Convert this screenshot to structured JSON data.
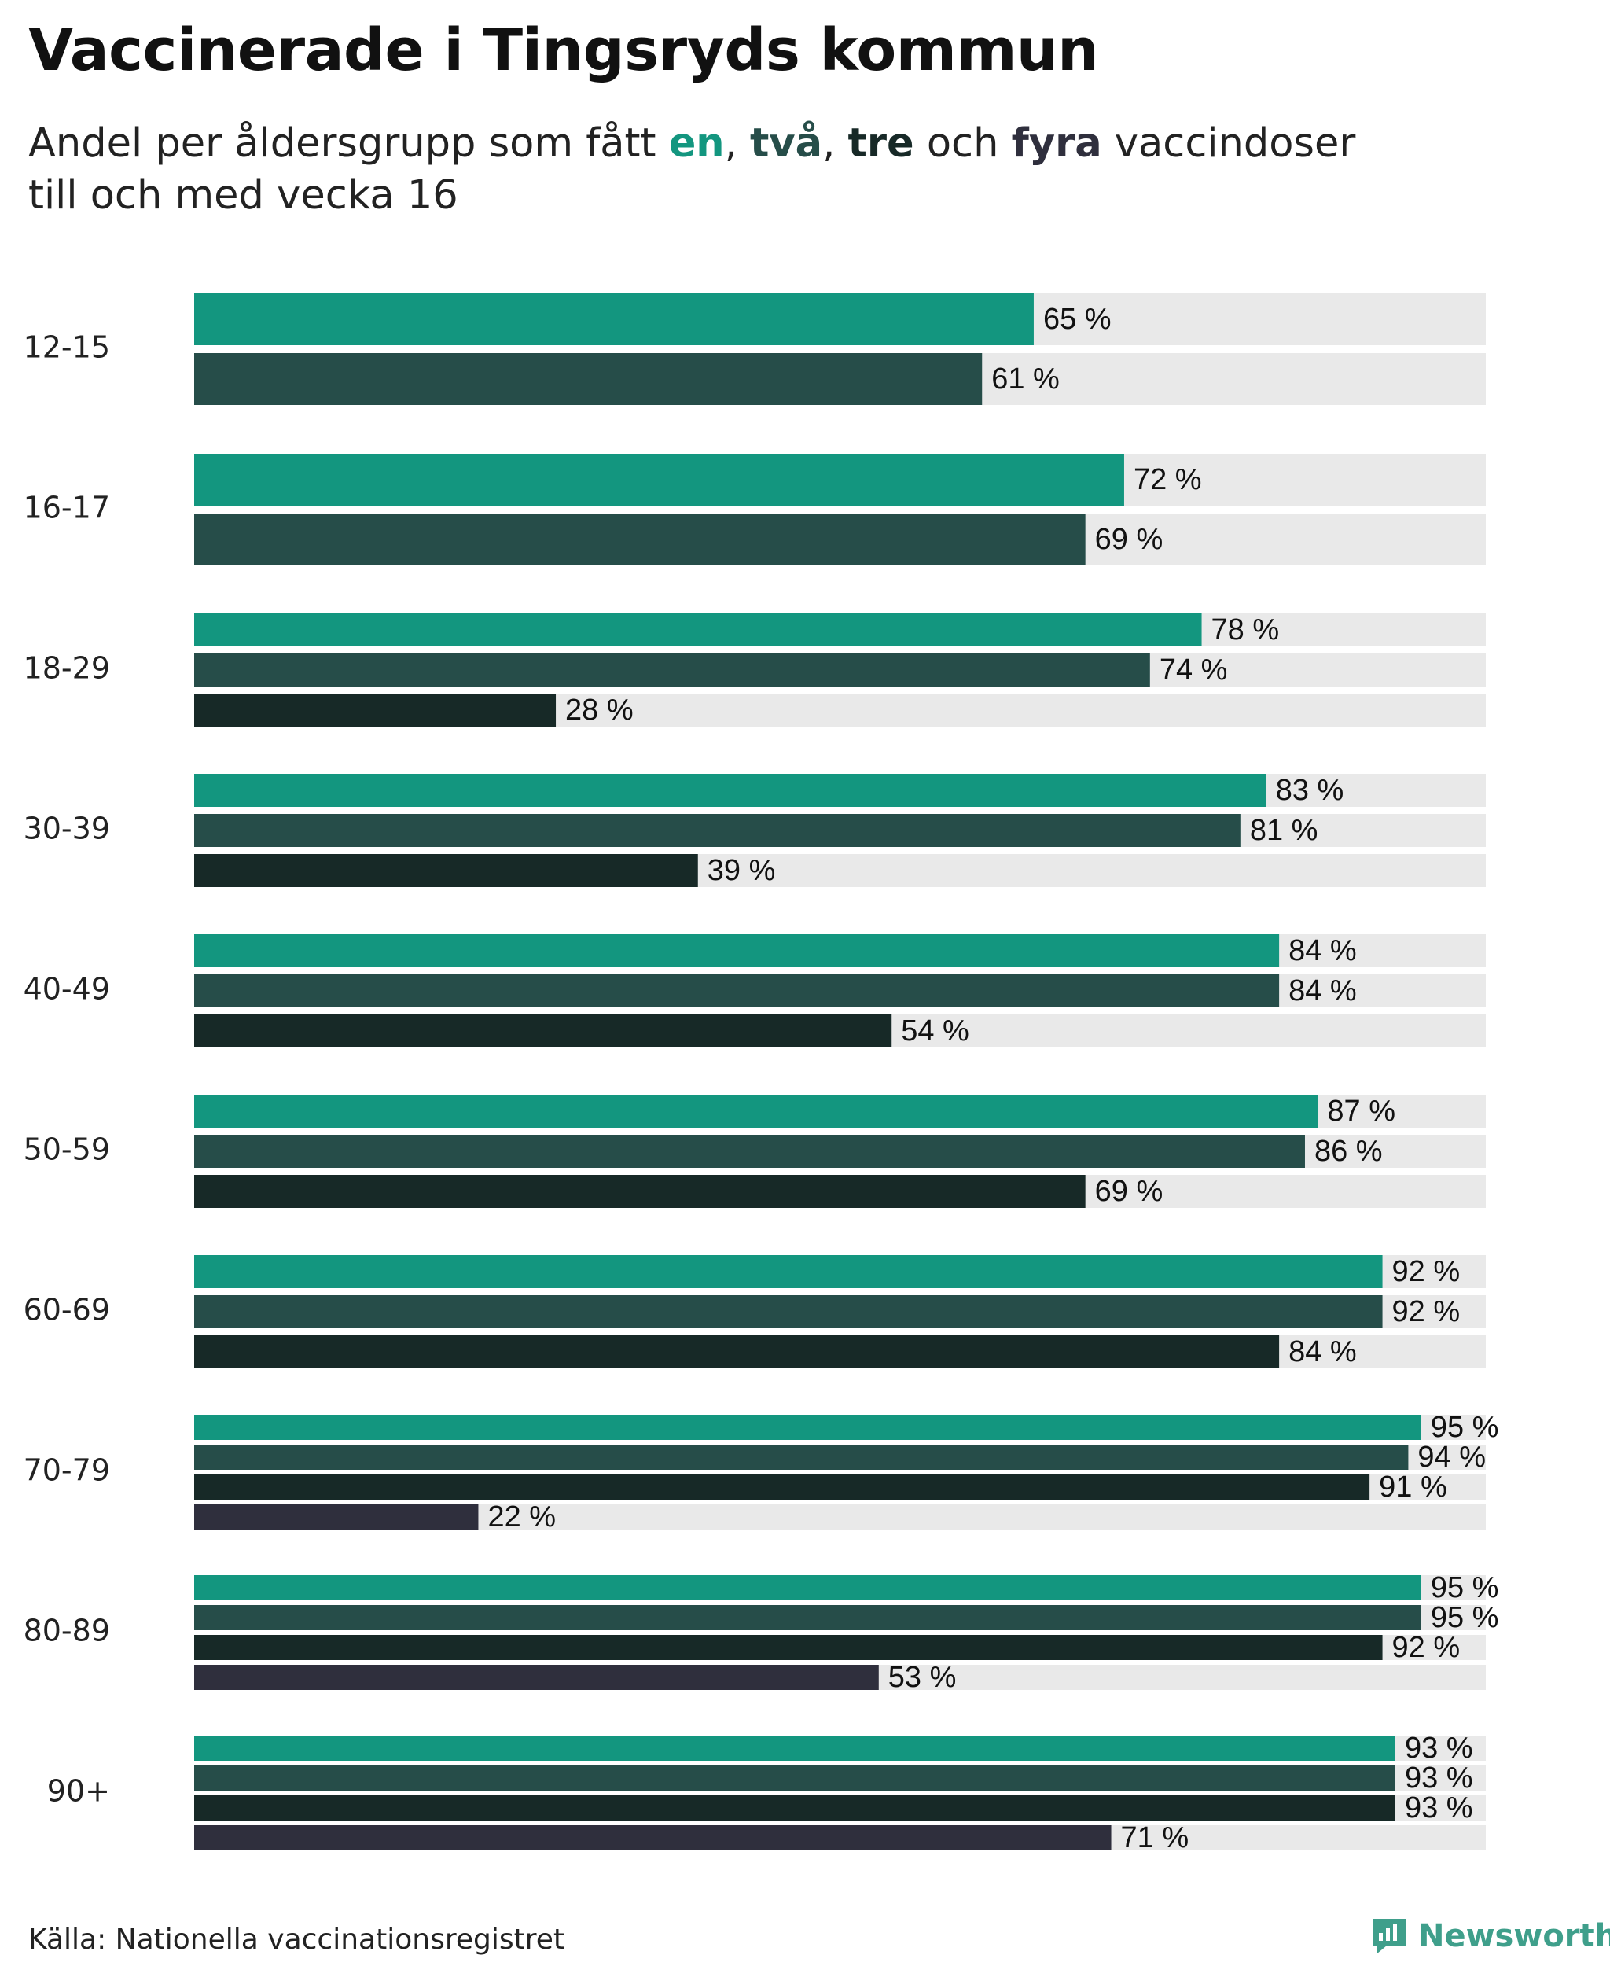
{
  "title": "Vaccinerade i Tingsryds kommun",
  "subtitle": {
    "line1_prefix": "Andel per åldersgrupp som fått ",
    "dose1": "en",
    "sep1": ", ",
    "dose2": "två",
    "sep2": ", ",
    "dose3": "tre",
    "mid": " och ",
    "dose4": "fyra",
    "line1_suffix": " vaccindoser",
    "line2": "till och med vecka 16"
  },
  "colors": {
    "dose1": "#13967f",
    "dose2": "#264d49",
    "dose3": "#172927",
    "dose4": "#2f2f3d",
    "background_bar": "#e9e9e9",
    "logo": "#3f9f8b"
  },
  "value_suffix": " %",
  "chart_data": {
    "type": "bar",
    "orientation": "horizontal",
    "xlim": [
      0,
      100
    ],
    "categories": [
      "12-15",
      "16-17",
      "18-29",
      "30-39",
      "40-49",
      "50-59",
      "60-69",
      "70-79",
      "80-89",
      "90+"
    ],
    "series": [
      {
        "name": "en",
        "values": [
          65,
          72,
          78,
          83,
          84,
          87,
          92,
          95,
          95,
          93
        ]
      },
      {
        "name": "två",
        "values": [
          61,
          69,
          74,
          81,
          84,
          86,
          92,
          94,
          95,
          93
        ]
      },
      {
        "name": "tre",
        "values": [
          null,
          null,
          28,
          39,
          54,
          69,
          84,
          91,
          92,
          93
        ]
      },
      {
        "name": "fyra",
        "values": [
          null,
          null,
          null,
          null,
          null,
          null,
          null,
          22,
          53,
          71
        ]
      }
    ]
  },
  "source": "Källa: Nationella vaccinationsregistret",
  "logo": {
    "text": "Newsworthy",
    "icon": "newsworthy-logo-icon"
  }
}
